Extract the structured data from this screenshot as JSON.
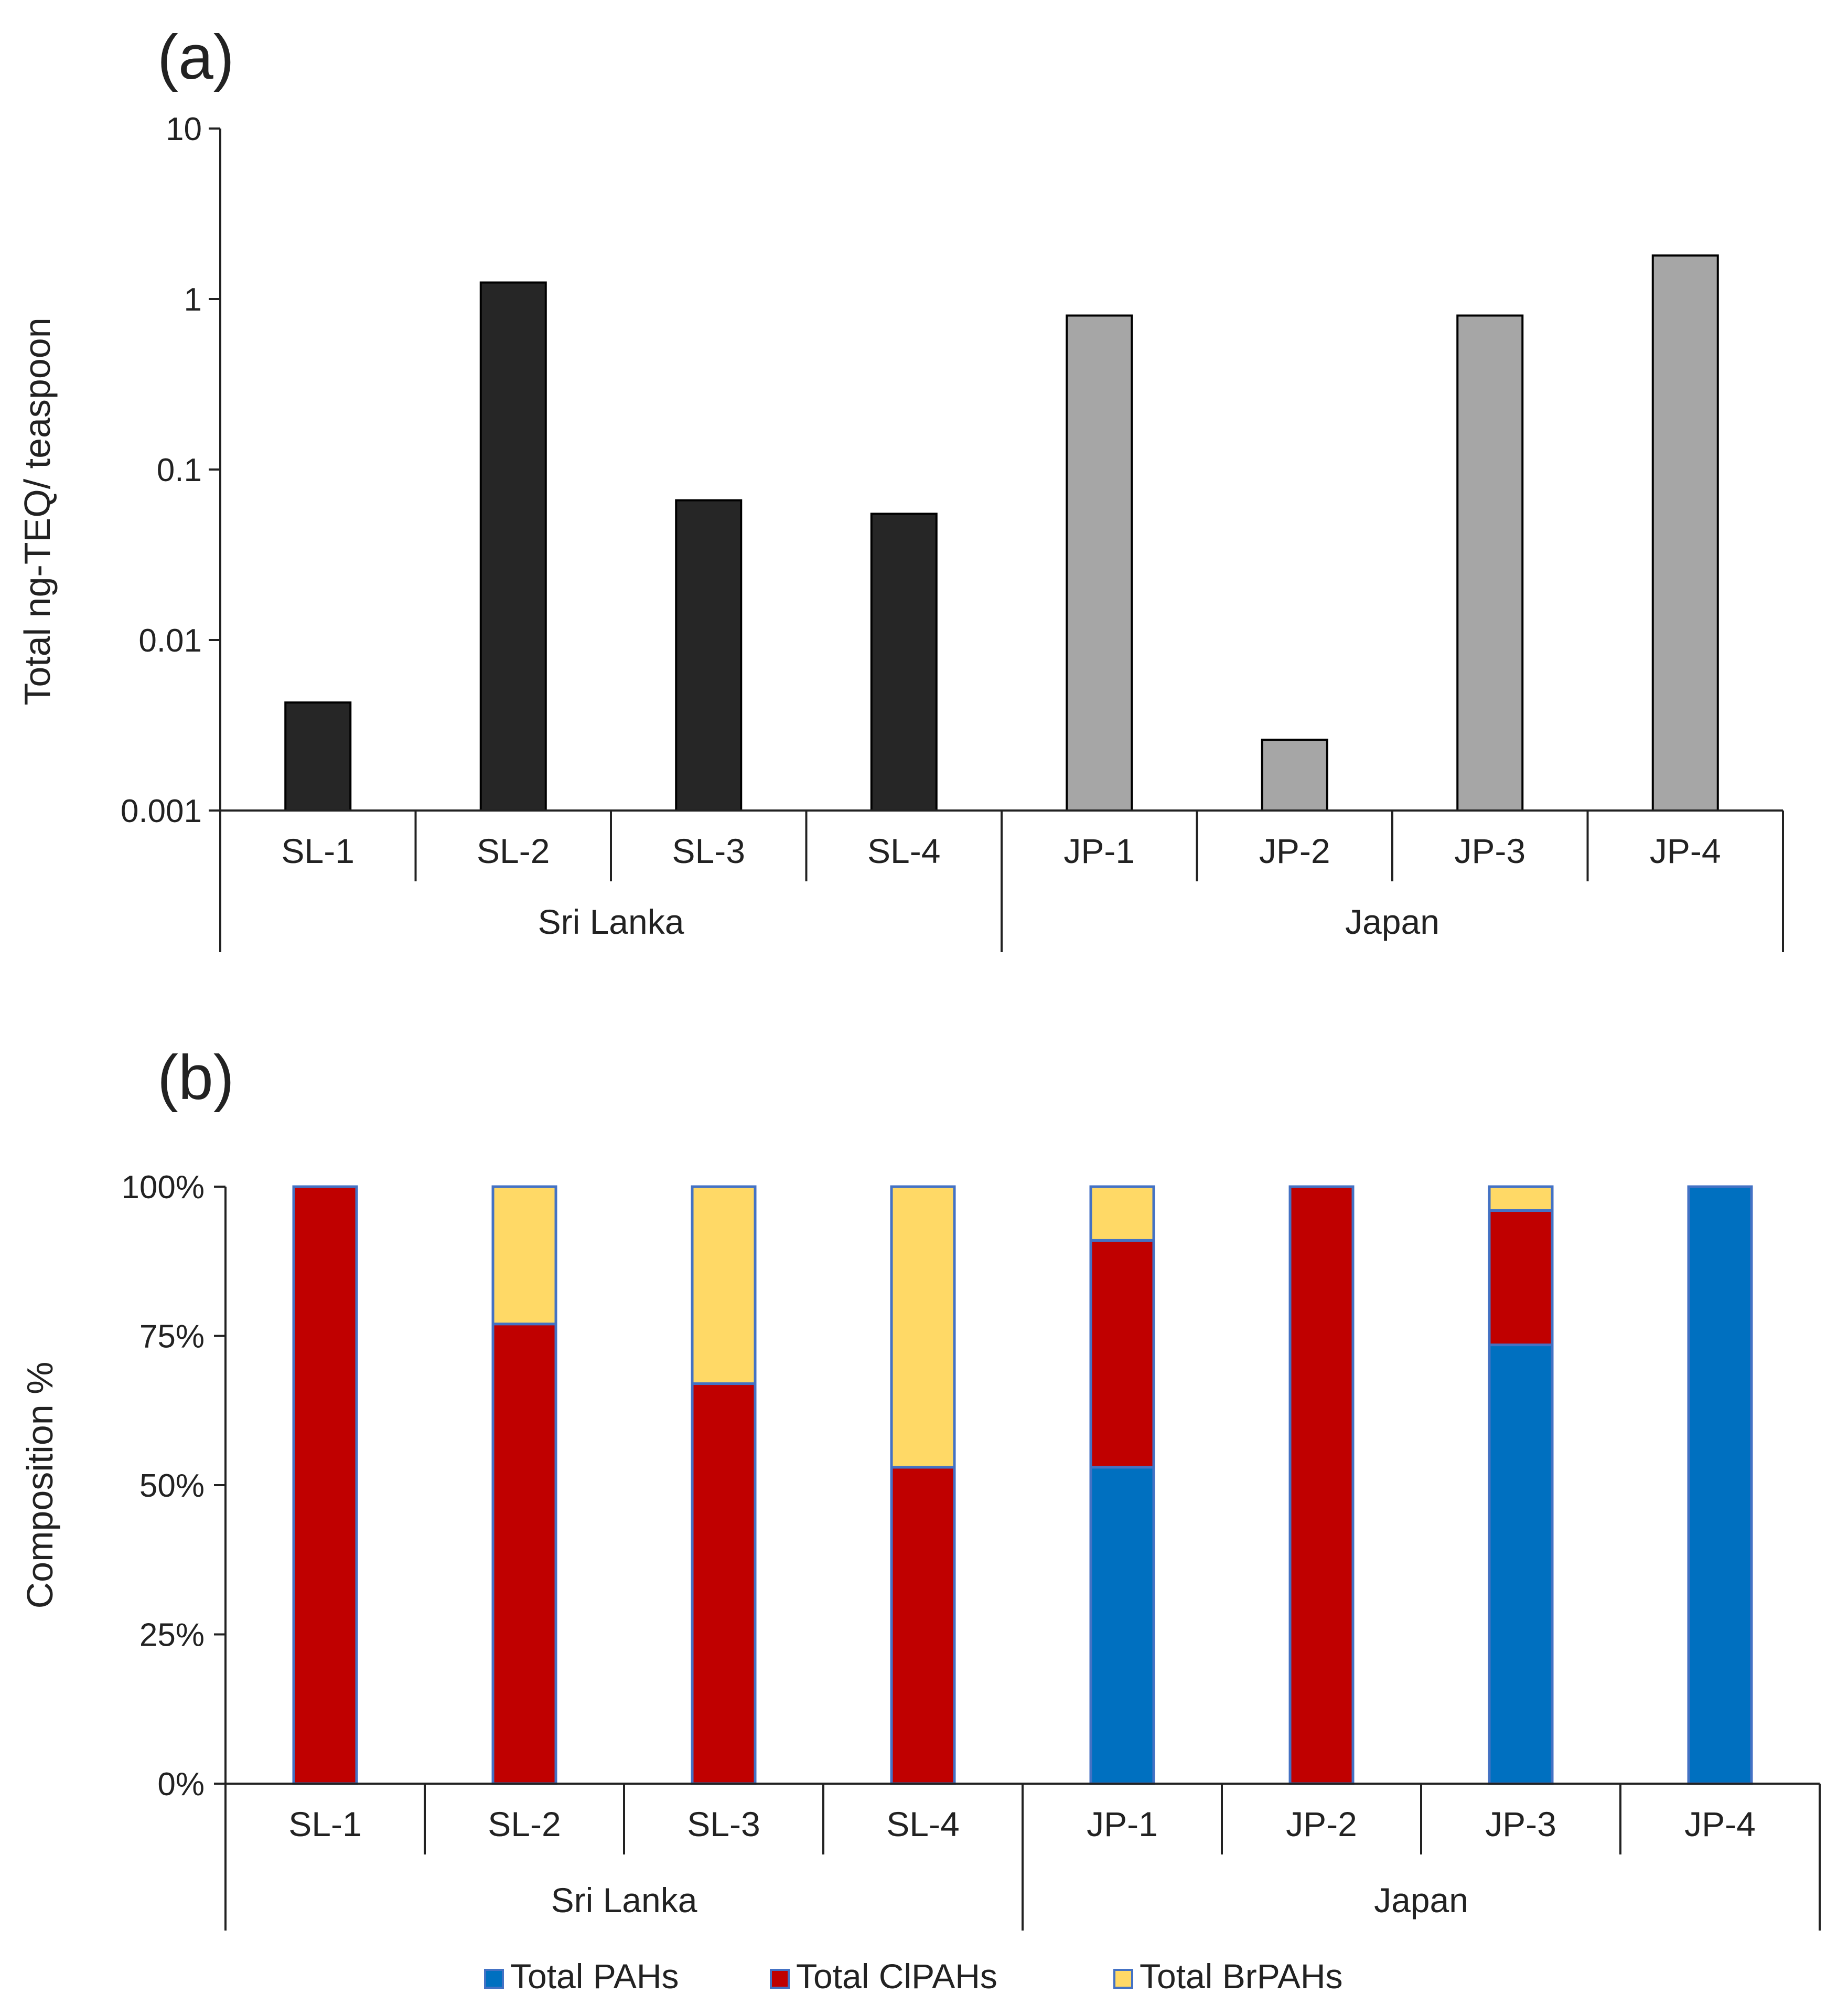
{
  "chart_data": [
    {
      "panel": "(a)",
      "type": "bar",
      "ylabel": "Total ng-TEQ/ teaspoon",
      "yscale": "log",
      "ylim": [
        0.001,
        10
      ],
      "yticks": [
        "10",
        "1",
        "0.1",
        "0.01",
        "0.001"
      ],
      "categories": [
        "SL-1",
        "SL-2",
        "SL-3",
        "SL-4",
        "JP-1",
        "JP-2",
        "JP-3",
        "JP-4"
      ],
      "groups": [
        {
          "name": "Sri Lanka",
          "categories": [
            "SL-1",
            "SL-2",
            "SL-3",
            "SL-4"
          ],
          "color": "#262626"
        },
        {
          "name": "Japan",
          "categories": [
            "JP-1",
            "JP-2",
            "JP-3",
            "JP-4"
          ],
          "color": "#a6a6a6"
        }
      ],
      "values": [
        0.0043,
        1.25,
        0.066,
        0.055,
        0.8,
        0.0026,
        0.8,
        1.8
      ],
      "grid": false
    },
    {
      "panel": "(b)",
      "type": "bar",
      "stacked": true,
      "ylabel": "Composition %",
      "ylim": [
        0,
        100
      ],
      "yticks": [
        "100%",
        "75%",
        "50%",
        "25%",
        "0%"
      ],
      "categories": [
        "SL-1",
        "SL-2",
        "SL-3",
        "SL-4",
        "JP-1",
        "JP-2",
        "JP-3",
        "JP-4"
      ],
      "groups": [
        {
          "name": "Sri Lanka",
          "categories": [
            "SL-1",
            "SL-2",
            "SL-3",
            "SL-4"
          ]
        },
        {
          "name": "Japan",
          "categories": [
            "JP-1",
            "JP-2",
            "JP-3",
            "JP-4"
          ]
        }
      ],
      "series": [
        {
          "name": "Total PAHs",
          "color": "#0070c0",
          "values": [
            0,
            0,
            0,
            0,
            53,
            0,
            73.5,
            100
          ]
        },
        {
          "name": "Total ClPAHs",
          "color": "#c00000",
          "values": [
            100,
            77,
            67,
            53,
            38,
            100,
            22.5,
            0
          ]
        },
        {
          "name": "Total BrPAHs",
          "color": "#ffd966",
          "values": [
            0,
            23,
            33,
            47,
            9,
            0,
            4,
            0
          ]
        }
      ],
      "legend": "bottom",
      "grid": false
    }
  ]
}
